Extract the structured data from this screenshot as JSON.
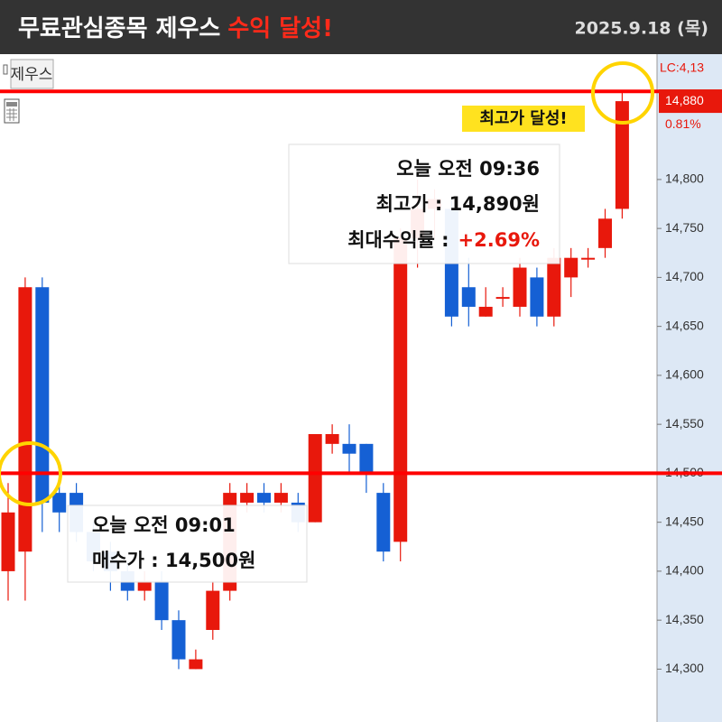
{
  "header": {
    "title_main": "무료관심종목 제우스",
    "title_highlight": "수익 달성!",
    "date": "2025.9.18 (목)"
  },
  "chart_data": {
    "type": "candlestick",
    "symbol": "제우스",
    "open": [
      14400,
      14420,
      14690,
      14480,
      14480,
      14440,
      14420,
      14400,
      14380,
      14390,
      14350,
      14300,
      14340,
      14380,
      14470,
      14480,
      14470,
      14470,
      14450,
      14530,
      14530,
      14530,
      14480,
      14430,
      14740,
      14770,
      14770,
      14690,
      14660,
      14680,
      14670,
      14700,
      14660,
      14700,
      14720,
      14730,
      14770
    ],
    "high": [
      14490,
      14700,
      14700,
      14490,
      14490,
      14450,
      14430,
      14410,
      14400,
      14400,
      14360,
      14320,
      14390,
      14490,
      14490,
      14490,
      14490,
      14480,
      14540,
      14550,
      14550,
      14530,
      14490,
      14750,
      14800,
      14790,
      14780,
      14720,
      14690,
      14690,
      14720,
      14710,
      14730,
      14730,
      14730,
      14770,
      14890
    ],
    "low": [
      14370,
      14370,
      14440,
      14440,
      14430,
      14400,
      14380,
      14370,
      14370,
      14340,
      14300,
      14300,
      14330,
      14370,
      14460,
      14460,
      14460,
      14440,
      14450,
      14520,
      14500,
      14480,
      14410,
      14410,
      14710,
      14740,
      14650,
      14650,
      14660,
      14670,
      14660,
      14650,
      14650,
      14680,
      14710,
      14720,
      14760
    ],
    "close": [
      14460,
      14690,
      14470,
      14460,
      14440,
      14410,
      14400,
      14380,
      14390,
      14350,
      14310,
      14310,
      14380,
      14480,
      14480,
      14470,
      14480,
      14450,
      14540,
      14540,
      14520,
      14500,
      14420,
      14740,
      14770,
      14780,
      14660,
      14670,
      14670,
      14680,
      14710,
      14660,
      14720,
      14720,
      14720,
      14760,
      14880
    ],
    "up_color": "#e8180c",
    "down_color": "#1560d4",
    "ylim": [
      14246,
      14928
    ],
    "yticks": [
      {
        "value": 14300,
        "label": "14,300"
      },
      {
        "value": 14350,
        "label": "14,350"
      },
      {
        "value": 14400,
        "label": "14,400"
      },
      {
        "value": 14450,
        "label": "14,450"
      },
      {
        "value": 14500,
        "label": "14,500"
      },
      {
        "value": 14550,
        "label": "14,550"
      },
      {
        "value": 14600,
        "label": "14,600"
      },
      {
        "value": 14650,
        "label": "14,650"
      },
      {
        "value": 14700,
        "label": "14,700"
      },
      {
        "value": 14750,
        "label": "14,750"
      },
      {
        "value": 14800,
        "label": "14,800"
      }
    ],
    "last_price": {
      "value": 14880,
      "label": "14,880"
    },
    "lc_label": "LC:4,13",
    "change_label": "0.81%",
    "hlines": [
      14890,
      14500
    ],
    "peak_note": {
      "time": "오늘 오전 09:36",
      "price": "최고가 : 14,890원",
      "return_label": "최대수익률 :",
      "return_value": "+2.69%"
    },
    "buy_note": {
      "time": "오늘 오전 09:01",
      "price": "매수가 : 14,500원"
    },
    "badge": "최고가 달성!"
  }
}
